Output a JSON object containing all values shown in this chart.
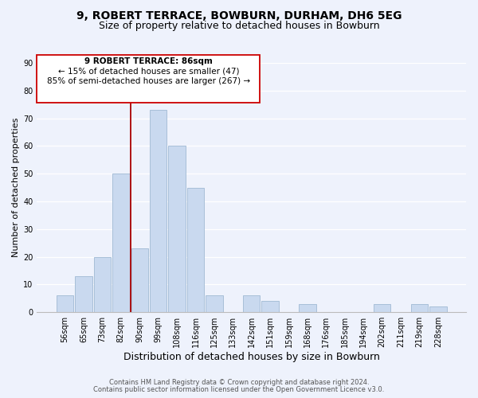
{
  "title": "9, ROBERT TERRACE, BOWBURN, DURHAM, DH6 5EG",
  "subtitle": "Size of property relative to detached houses in Bowburn",
  "xlabel": "Distribution of detached houses by size in Bowburn",
  "ylabel": "Number of detached properties",
  "bar_labels": [
    "56sqm",
    "65sqm",
    "73sqm",
    "82sqm",
    "90sqm",
    "99sqm",
    "108sqm",
    "116sqm",
    "125sqm",
    "133sqm",
    "142sqm",
    "151sqm",
    "159sqm",
    "168sqm",
    "176sqm",
    "185sqm",
    "194sqm",
    "202sqm",
    "211sqm",
    "219sqm",
    "228sqm"
  ],
  "bar_values": [
    6,
    13,
    20,
    50,
    23,
    73,
    60,
    45,
    6,
    0,
    6,
    4,
    0,
    3,
    0,
    0,
    0,
    3,
    0,
    3,
    2
  ],
  "bar_color": "#c9d9ef",
  "bar_edge_color": "#a8bfd8",
  "ylim": [
    0,
    90
  ],
  "yticks": [
    0,
    10,
    20,
    30,
    40,
    50,
    60,
    70,
    80,
    90
  ],
  "vline_x": 3.5,
  "vline_color": "#aa0000",
  "annotation_title": "9 ROBERT TERRACE: 86sqm",
  "annotation_line1": "← 15% of detached houses are smaller (47)",
  "annotation_line2": "85% of semi-detached houses are larger (267) →",
  "annotation_box_color": "#ffffff",
  "annotation_box_edge": "#cc0000",
  "footer_line1": "Contains HM Land Registry data © Crown copyright and database right 2024.",
  "footer_line2": "Contains public sector information licensed under the Open Government Licence v3.0.",
  "background_color": "#eef2fc",
  "grid_color": "#ffffff",
  "title_fontsize": 10,
  "subtitle_fontsize": 9,
  "xlabel_fontsize": 9,
  "ylabel_fontsize": 8,
  "tick_fontsize": 7,
  "footer_fontsize": 6,
  "annotation_fontsize": 7.5
}
